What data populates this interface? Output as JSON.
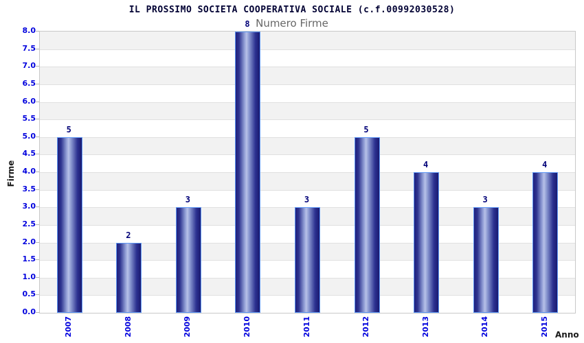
{
  "header": {
    "title": "IL PROSSIMO SOCIETA COOPERATIVA SOCIALE (c.f.00992030528)",
    "subtitle": "Numero Firme"
  },
  "chart_data": {
    "type": "bar",
    "title": "Numero Firme",
    "categories": [
      "2007",
      "2008",
      "2009",
      "2010",
      "2011",
      "2012",
      "2013",
      "2014",
      "2015"
    ],
    "values": [
      5,
      2,
      3,
      8,
      3,
      5,
      4,
      3,
      4
    ],
    "data_labels": [
      "5",
      "2",
      "3",
      "8",
      "3",
      "5",
      "4",
      "3",
      "4"
    ],
    "xlabel": "Anno",
    "ylabel": "Firme",
    "ylim": [
      0,
      8
    ],
    "ytick_step": 0.5,
    "yticks": [
      "8.0",
      "7.5",
      "7.0",
      "6.5",
      "6.0",
      "5.5",
      "5.0",
      "4.5",
      "4.0",
      "3.5",
      "3.0",
      "2.5",
      "2.0",
      "1.5",
      "1.0",
      "0.5",
      "0.0"
    ],
    "grid": "alternating-horizontal-bands",
    "legend": "none"
  },
  "colors": {
    "tick_label": "#0000dd",
    "title_text": "#000033",
    "subtitle_text": "#666666",
    "data_label": "#000077",
    "bar_border": "#5d97f5",
    "bar_gradient_dark": "#1b1b74",
    "bar_gradient_light": "#b7c1e8",
    "band_shaded": "#f2f2f2",
    "band_plain": "#ffffff",
    "grid_line": "#e0e0e0",
    "plot_border": "#c8c8c8",
    "axis_title_text": "#1a1a1a"
  }
}
